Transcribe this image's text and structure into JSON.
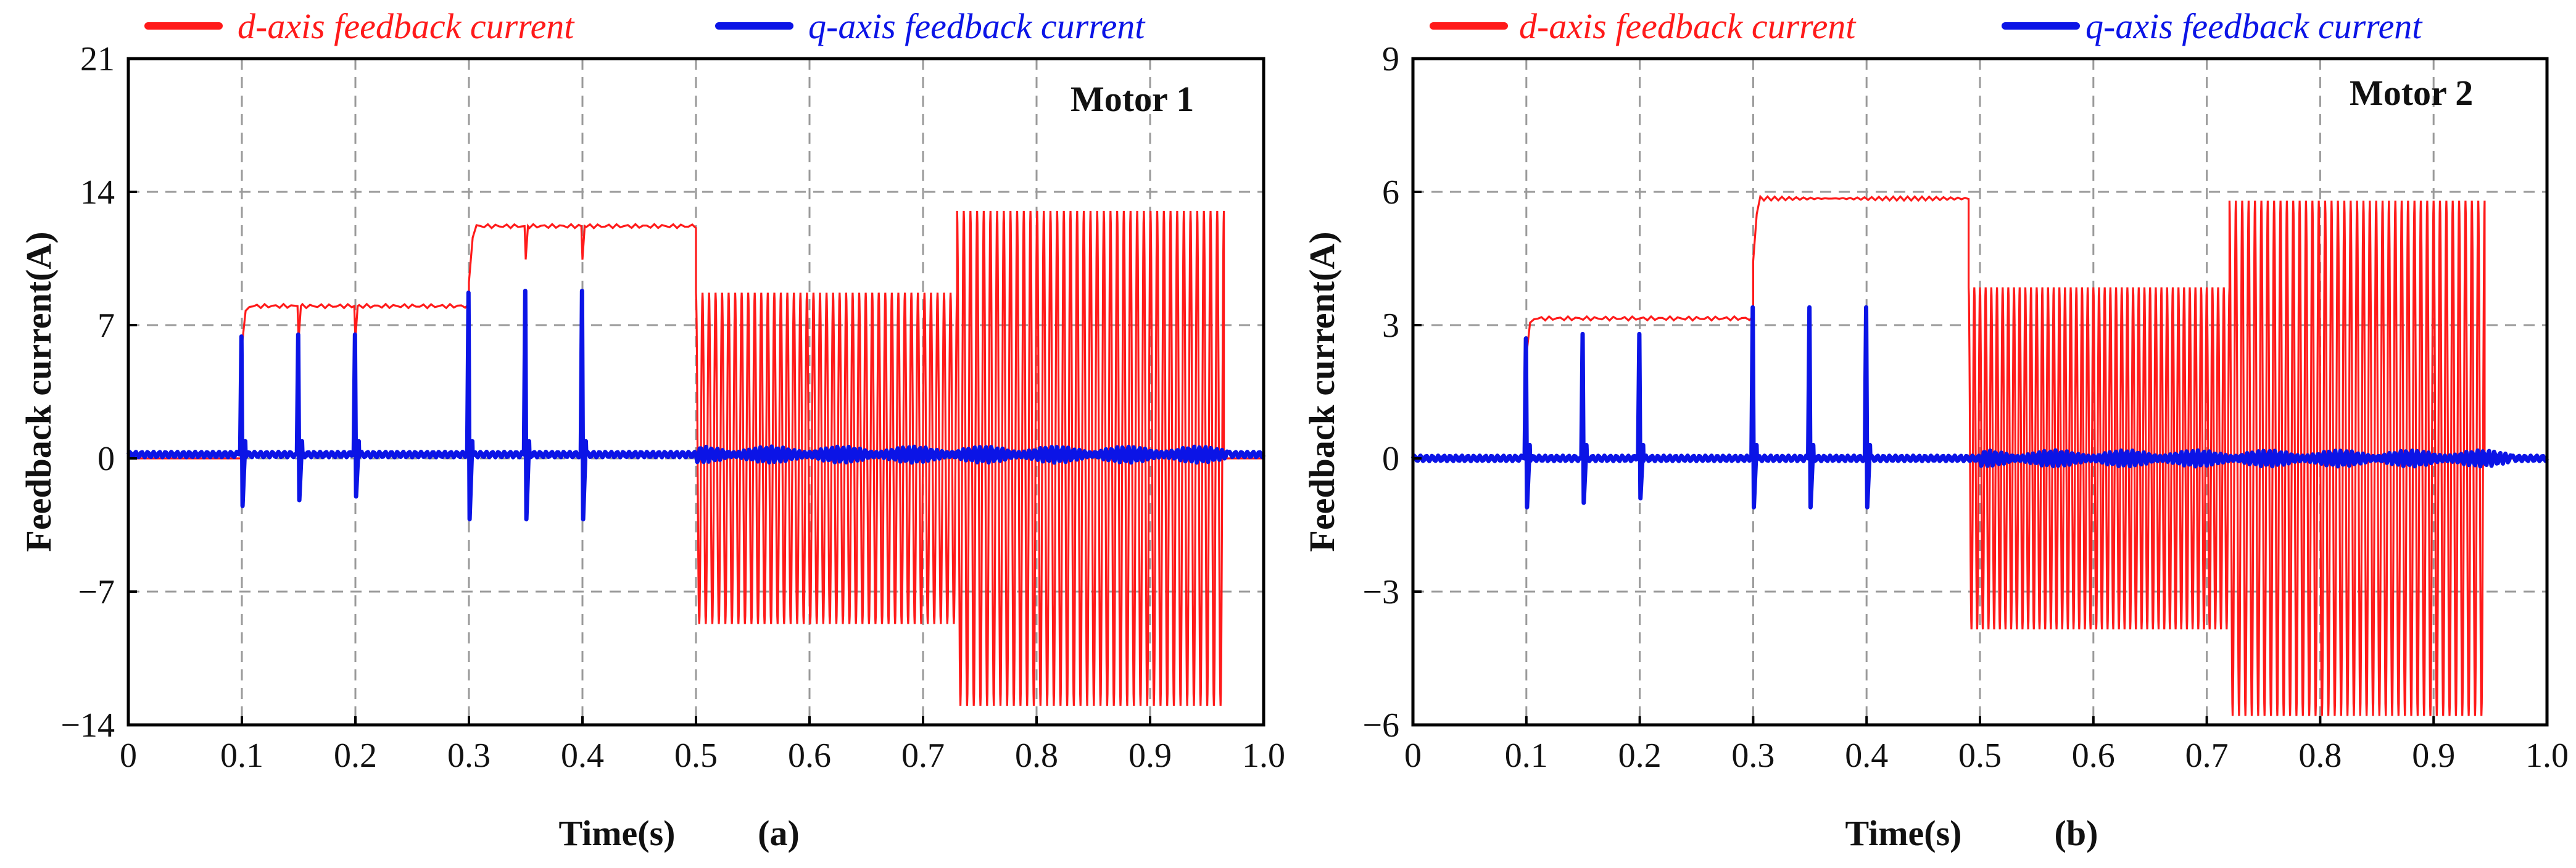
{
  "colors": {
    "d_axis": "#ff1a1a",
    "q_axis": "#0b14e6",
    "grid": "#9a9a9a"
  },
  "legend": {
    "d_label": "d-axis feedback current",
    "q_label": "q-axis feedback current"
  },
  "xlabel": "Time(s)",
  "ylabel": "Feedback current(A)",
  "chart_data": [
    {
      "type": "line",
      "panel": "(a)",
      "annotation": "Motor 1",
      "xlabel": "Time(s)",
      "ylabel": "Feedback current(A)",
      "xlim": [
        0,
        1.0
      ],
      "ylim": [
        -14,
        21
      ],
      "xticks": [
        "0",
        "0.1",
        "0.2",
        "0.3",
        "0.4",
        "0.5",
        "0.6",
        "0.7",
        "0.8",
        "0.9",
        "1.0"
      ],
      "yticks": [
        "21",
        "14",
        "7",
        "0",
        "−7",
        "−14"
      ],
      "ytick_values": [
        21,
        14,
        7,
        0,
        -7,
        -14
      ],
      "grid": true,
      "series": [
        {
          "name": "d-axis feedback current",
          "segments": [
            {
              "kind": "step",
              "t_start": 0.0,
              "t_end": 0.1,
              "level": 0
            },
            {
              "kind": "step",
              "t_start": 0.1,
              "t_end": 0.3,
              "level": 8.0,
              "dips": [
                0.15,
                0.2
              ]
            },
            {
              "kind": "step",
              "t_start": 0.3,
              "t_end": 0.5,
              "level": 12.2,
              "dips": [
                0.35,
                0.4
              ]
            },
            {
              "kind": "sine",
              "t_start": 0.5,
              "t_end": 0.73,
              "amplitude": 8.7,
              "cycles": 40
            },
            {
              "kind": "sine",
              "t_start": 0.73,
              "t_end": 0.965,
              "amplitude": 13.0,
              "cycles": 40
            },
            {
              "kind": "step",
              "t_start": 0.965,
              "t_end": 1.0,
              "level": 0
            }
          ]
        },
        {
          "name": "q-axis feedback current",
          "baseline": 0.2,
          "spikes": [
            {
              "t": 0.1,
              "peak": 6.4,
              "trough": -2.5
            },
            {
              "t": 0.15,
              "peak": 6.5,
              "trough": -2.2
            },
            {
              "t": 0.2,
              "peak": 6.5,
              "trough": -2.0
            },
            {
              "t": 0.3,
              "peak": 8.7,
              "trough": -3.2
            },
            {
              "t": 0.35,
              "peak": 8.8,
              "trough": -3.2
            },
            {
              "t": 0.4,
              "peak": 8.8,
              "trough": -3.2
            }
          ]
        }
      ]
    },
    {
      "type": "line",
      "panel": "(b)",
      "annotation": "Motor 2",
      "xlabel": "Time(s)",
      "ylabel": "Feedback current(A)",
      "xlim": [
        0,
        1.0
      ],
      "ylim": [
        -6,
        9
      ],
      "xticks": [
        "0",
        "0.1",
        "0.2",
        "0.3",
        "0.4",
        "0.5",
        "0.6",
        "0.7",
        "0.8",
        "0.9",
        "1.0"
      ],
      "yticks": [
        "9",
        "6",
        "3",
        "0",
        "−3",
        "−6"
      ],
      "ytick_values": [
        9,
        6,
        3,
        0,
        -3,
        -6
      ],
      "grid": true,
      "series": [
        {
          "name": "d-axis feedback current",
          "segments": [
            {
              "kind": "step",
              "t_start": 0.0,
              "t_end": 0.1,
              "level": 0
            },
            {
              "kind": "step",
              "t_start": 0.1,
              "t_end": 0.3,
              "level": 3.15
            },
            {
              "kind": "step",
              "t_start": 0.3,
              "t_end": 0.49,
              "level": 5.85
            },
            {
              "kind": "sine",
              "t_start": 0.49,
              "t_end": 0.72,
              "amplitude": 3.85,
              "cycles": 46
            },
            {
              "kind": "sine",
              "t_start": 0.72,
              "t_end": 0.945,
              "amplitude": 5.8,
              "cycles": 40
            },
            {
              "kind": "step",
              "t_start": 0.945,
              "t_end": 1.0,
              "level": 0
            }
          ]
        },
        {
          "name": "q-axis feedback current",
          "baseline": 0.0,
          "spikes": [
            {
              "t": 0.1,
              "peak": 2.7,
              "trough": -1.1
            },
            {
              "t": 0.15,
              "peak": 2.8,
              "trough": -1.0
            },
            {
              "t": 0.2,
              "peak": 2.8,
              "trough": -0.9
            },
            {
              "t": 0.3,
              "peak": 3.4,
              "trough": -1.1
            },
            {
              "t": 0.35,
              "peak": 3.4,
              "trough": -1.1
            },
            {
              "t": 0.4,
              "peak": 3.4,
              "trough": -1.1
            }
          ]
        }
      ]
    }
  ]
}
